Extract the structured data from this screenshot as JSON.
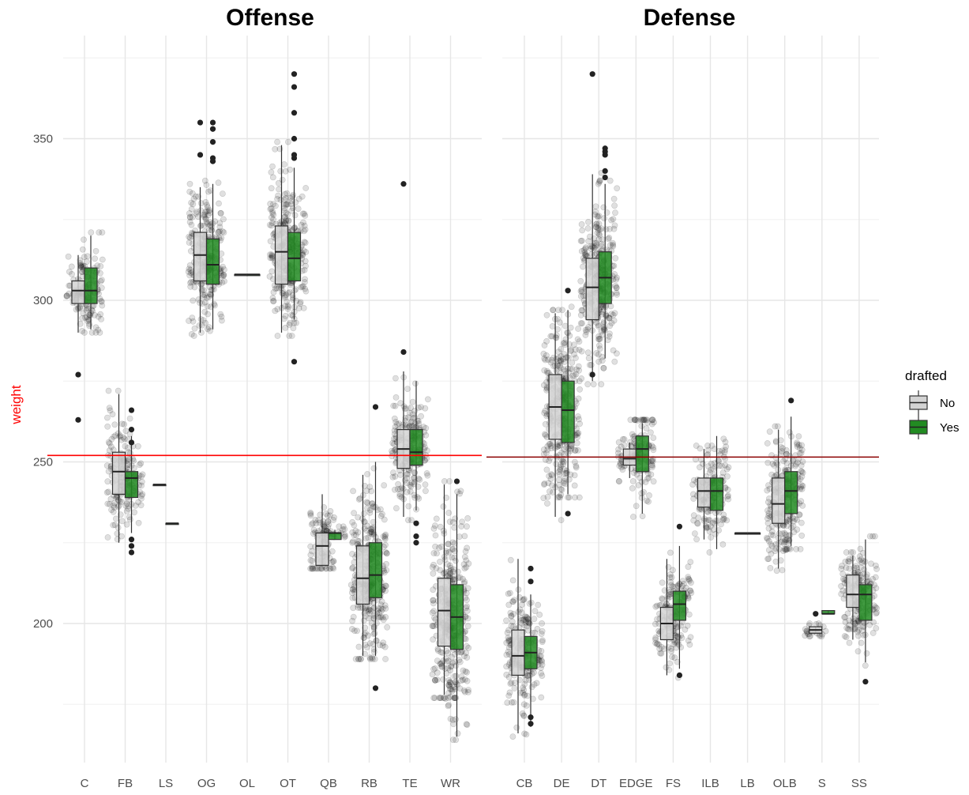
{
  "chart_data": {
    "type": "boxplot",
    "ylabel": "weight",
    "ylabel_color": "#ff0000",
    "ylim": [
      165,
      377
    ],
    "yticks": [
      200,
      250,
      300,
      350
    ],
    "grid": true,
    "legend": {
      "title": "drafted",
      "position": "right",
      "entries": [
        {
          "label": "No",
          "color": "#d3d3d3"
        },
        {
          "label": "Yes",
          "color": "#228b22"
        }
      ]
    },
    "panels": [
      {
        "title": "Offense",
        "mean_line": 252,
        "mean_line_color": "#ff0000",
        "categories": [
          "C",
          "FB",
          "LS",
          "OG",
          "OL",
          "OT",
          "QB",
          "RB",
          "TE",
          "WR"
        ],
        "boxes": [
          {
            "pos": "C",
            "drafted": "No",
            "lw": 290,
            "q1": 299,
            "med": 303,
            "q3": 306,
            "uw": 314,
            "outliers": [
              277,
              263
            ]
          },
          {
            "pos": "C",
            "drafted": "Yes",
            "lw": 291,
            "q1": 299,
            "med": 303,
            "q3": 310,
            "uw": 320,
            "outliers": []
          },
          {
            "pos": "FB",
            "drafted": "No",
            "lw": 225,
            "q1": 240,
            "med": 247,
            "q3": 253,
            "uw": 271,
            "outliers": []
          },
          {
            "pos": "FB",
            "drafted": "Yes",
            "lw": 228,
            "q1": 239,
            "med": 245,
            "q3": 247,
            "uw": 258,
            "outliers": [
              266,
              260,
              256,
              226,
              224,
              222
            ]
          },
          {
            "pos": "LS",
            "drafted": "No",
            "lw": 243,
            "q1": 243,
            "med": 243,
            "q3": 243,
            "uw": 243,
            "outliers": []
          },
          {
            "pos": "LS",
            "drafted": "Yes",
            "lw": 231,
            "q1": 231,
            "med": 231,
            "q3": 231,
            "uw": 231,
            "outliers": []
          },
          {
            "pos": "OG",
            "drafted": "No",
            "lw": 290,
            "q1": 306,
            "med": 314,
            "q3": 321,
            "uw": 335,
            "outliers": [
              355,
              345
            ]
          },
          {
            "pos": "OG",
            "drafted": "Yes",
            "lw": 291,
            "q1": 305,
            "med": 311,
            "q3": 319,
            "uw": 336,
            "outliers": [
              355,
              353,
              349,
              344,
              343
            ]
          },
          {
            "pos": "OL",
            "drafted": "No",
            "lw": 308,
            "q1": 308,
            "med": 308,
            "q3": 308,
            "uw": 308,
            "outliers": []
          },
          {
            "pos": "OL",
            "drafted": "Yes",
            "lw": 308,
            "q1": 308,
            "med": 308,
            "q3": 308,
            "uw": 308,
            "outliers": []
          },
          {
            "pos": "OT",
            "drafted": "No",
            "lw": 290,
            "q1": 305,
            "med": 315,
            "q3": 323,
            "uw": 348,
            "outliers": []
          },
          {
            "pos": "OT",
            "drafted": "Yes",
            "lw": 294,
            "q1": 306,
            "med": 313,
            "q3": 321,
            "uw": 341,
            "outliers": [
              370,
              366,
              358,
              350,
              345,
              344,
              281
            ]
          },
          {
            "pos": "QB",
            "drafted": "No",
            "lw": 218,
            "q1": 218,
            "med": 224,
            "q3": 228,
            "uw": 240,
            "outliers": []
          },
          {
            "pos": "QB",
            "drafted": "Yes",
            "lw": 226,
            "q1": 226,
            "med": 228,
            "q3": 228,
            "uw": 229,
            "outliers": []
          },
          {
            "pos": "RB",
            "drafted": "No",
            "lw": 190,
            "q1": 206,
            "med": 214,
            "q3": 224,
            "uw": 246,
            "outliers": []
          },
          {
            "pos": "RB",
            "drafted": "Yes",
            "lw": 190,
            "q1": 208,
            "med": 215,
            "q3": 225,
            "uw": 250,
            "outliers": [
              267,
              180
            ]
          },
          {
            "pos": "TE",
            "drafted": "No",
            "lw": 233,
            "q1": 248,
            "med": 254,
            "q3": 260,
            "uw": 278,
            "outliers": [
              336,
              284
            ]
          },
          {
            "pos": "TE",
            "drafted": "Yes",
            "lw": 235,
            "q1": 249,
            "med": 253,
            "q3": 260,
            "uw": 275,
            "outliers": [
              231,
              227,
              225
            ]
          },
          {
            "pos": "WR",
            "drafted": "No",
            "lw": 178,
            "q1": 193,
            "med": 204,
            "q3": 214,
            "uw": 243,
            "outliers": []
          },
          {
            "pos": "WR",
            "drafted": "Yes",
            "lw": 165,
            "q1": 192,
            "med": 202,
            "q3": 212,
            "uw": 240,
            "outliers": [
              244
            ]
          }
        ]
      },
      {
        "title": "Defense",
        "mean_line": 251.5,
        "mean_line_color": "#8b0000",
        "categories": [
          "CB",
          "DE",
          "DT",
          "EDGE",
          "FS",
          "ILB",
          "LB",
          "OLB",
          "S",
          "SS"
        ],
        "boxes": [
          {
            "pos": "CB",
            "drafted": "No",
            "lw": 166,
            "q1": 184,
            "med": 190,
            "q3": 198,
            "uw": 220,
            "outliers": []
          },
          {
            "pos": "CB",
            "drafted": "Yes",
            "lw": 168,
            "q1": 186,
            "med": 191,
            "q3": 196,
            "uw": 209,
            "outliers": [
              217,
              213,
              171,
              169
            ]
          },
          {
            "pos": "DE",
            "drafted": "No",
            "lw": 233,
            "q1": 257,
            "med": 267,
            "q3": 277,
            "uw": 296,
            "outliers": []
          },
          {
            "pos": "DE",
            "drafted": "Yes",
            "lw": 240,
            "q1": 256,
            "med": 266,
            "q3": 275,
            "uw": 297,
            "outliers": [
              303,
              234
            ]
          },
          {
            "pos": "DT",
            "drafted": "No",
            "lw": 275,
            "q1": 294,
            "med": 304,
            "q3": 313,
            "uw": 339,
            "outliers": [
              370,
              277
            ]
          },
          {
            "pos": "DT",
            "drafted": "Yes",
            "lw": 282,
            "q1": 299,
            "med": 307,
            "q3": 315,
            "uw": 336,
            "outliers": [
              347,
              346,
              345,
              340,
              338
            ]
          },
          {
            "pos": "EDGE",
            "drafted": "No",
            "lw": 245,
            "q1": 249,
            "med": 251,
            "q3": 254,
            "uw": 256,
            "outliers": []
          },
          {
            "pos": "EDGE",
            "drafted": "Yes",
            "lw": 234,
            "q1": 247,
            "med": 254,
            "q3": 258,
            "uw": 262,
            "outliers": []
          },
          {
            "pos": "FS",
            "drafted": "No",
            "lw": 184,
            "q1": 195,
            "med": 200,
            "q3": 205,
            "uw": 220,
            "outliers": []
          },
          {
            "pos": "FS",
            "drafted": "Yes",
            "lw": 186,
            "q1": 201,
            "med": 206,
            "q3": 210,
            "uw": 224,
            "outliers": [
              230,
              184
            ]
          },
          {
            "pos": "ILB",
            "drafted": "No",
            "lw": 226,
            "q1": 236,
            "med": 241,
            "q3": 245,
            "uw": 254,
            "outliers": []
          },
          {
            "pos": "ILB",
            "drafted": "Yes",
            "lw": 223,
            "q1": 235,
            "med": 241,
            "q3": 245,
            "uw": 258,
            "outliers": []
          },
          {
            "pos": "LB",
            "drafted": "No",
            "lw": 228,
            "q1": 228,
            "med": 228,
            "q3": 228,
            "uw": 228,
            "outliers": []
          },
          {
            "pos": "LB",
            "drafted": "Yes",
            "lw": 228,
            "q1": 228,
            "med": 228,
            "q3": 228,
            "uw": 228,
            "outliers": []
          },
          {
            "pos": "OLB",
            "drafted": "No",
            "lw": 217,
            "q1": 231,
            "med": 237,
            "q3": 245,
            "uw": 260,
            "outliers": []
          },
          {
            "pos": "OLB",
            "drafted": "Yes",
            "lw": 224,
            "q1": 234,
            "med": 241,
            "q3": 247,
            "uw": 264,
            "outliers": [
              269
            ]
          },
          {
            "pos": "S",
            "drafted": "No",
            "lw": 197,
            "q1": 197,
            "med": 198,
            "q3": 199,
            "uw": 199,
            "outliers": [
              203
            ]
          },
          {
            "pos": "S",
            "drafted": "Yes",
            "lw": 203,
            "q1": 203,
            "med": 203,
            "q3": 204,
            "uw": 204,
            "outliers": []
          },
          {
            "pos": "SS",
            "drafted": "No",
            "lw": 195,
            "q1": 205,
            "med": 209,
            "q3": 215,
            "uw": 221,
            "outliers": []
          },
          {
            "pos": "SS",
            "drafted": "Yes",
            "lw": 188,
            "q1": 201,
            "med": 209,
            "q3": 212,
            "uw": 226,
            "outliers": [
              182
            ]
          }
        ]
      }
    ]
  }
}
